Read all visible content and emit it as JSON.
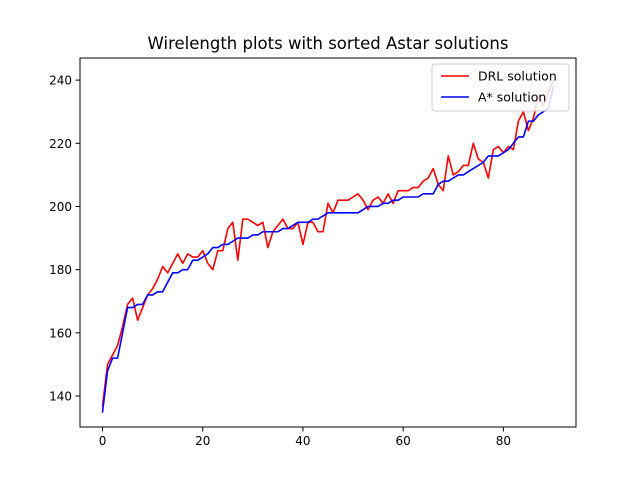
{
  "chart_data": {
    "type": "line",
    "title": "Wirelength plots with sorted Astar solutions",
    "xlabel": "",
    "ylabel": "",
    "xlim": [
      -4.5,
      94.5
    ],
    "ylim": [
      130.2,
      247.0
    ],
    "xticks": [
      0,
      20,
      40,
      60,
      80
    ],
    "yticks": [
      140,
      160,
      180,
      200,
      220,
      240
    ],
    "grid": false,
    "legend_position": "top-right",
    "x": [
      0,
      1,
      2,
      3,
      4,
      5,
      6,
      7,
      8,
      9,
      10,
      11,
      12,
      13,
      14,
      15,
      16,
      17,
      18,
      19,
      20,
      21,
      22,
      23,
      24,
      25,
      26,
      27,
      28,
      29,
      30,
      31,
      32,
      33,
      34,
      35,
      36,
      37,
      38,
      39,
      40,
      41,
      42,
      43,
      44,
      45,
      46,
      47,
      48,
      49,
      50,
      51,
      52,
      53,
      54,
      55,
      56,
      57,
      58,
      59,
      60,
      61,
      62,
      63,
      64,
      65,
      66,
      67,
      68,
      69,
      70,
      71,
      72,
      73,
      74,
      75,
      76,
      77,
      78,
      79,
      80,
      81,
      82,
      83,
      84,
      85,
      86,
      87,
      88,
      89,
      90
    ],
    "series": [
      {
        "name": "DRL solution",
        "color": "#ff0000",
        "values": [
          137,
          150,
          153,
          156,
          162,
          169,
          171,
          164,
          168,
          172,
          174,
          177,
          181,
          179,
          182,
          185,
          182,
          185,
          184,
          184,
          186,
          182,
          180,
          186,
          186,
          193,
          195,
          183,
          196,
          196,
          195,
          194,
          195,
          187,
          192,
          194,
          196,
          193,
          193,
          195,
          188,
          195,
          195,
          192,
          192,
          201,
          198,
          202,
          202,
          202,
          203,
          204,
          202,
          199,
          202,
          203,
          201,
          204,
          201,
          205,
          205,
          205,
          206,
          206,
          208,
          209,
          212,
          207,
          205,
          216,
          210,
          211,
          213,
          213,
          220,
          215,
          214,
          209,
          218,
          219,
          217,
          219,
          218,
          227,
          230,
          224,
          228,
          235,
          232,
          236,
          240
        ]
      },
      {
        "name": "A* solution",
        "color": "#0000ff",
        "values": [
          135,
          148,
          152,
          152,
          160,
          168,
          168,
          169,
          169,
          172,
          172,
          173,
          173,
          176,
          179,
          179,
          180,
          180,
          183,
          183,
          184,
          185,
          187,
          187,
          188,
          188,
          189,
          190,
          190,
          190,
          191,
          191,
          192,
          192,
          192,
          192,
          193,
          193,
          194,
          195,
          195,
          195,
          196,
          196,
          197,
          198,
          198,
          198,
          198,
          198,
          198,
          198,
          199,
          200,
          200,
          200,
          201,
          201,
          202,
          202,
          203,
          203,
          203,
          203,
          204,
          204,
          204,
          207,
          208,
          208,
          209,
          210,
          210,
          211,
          212,
          213,
          214,
          216,
          216,
          216,
          217,
          218,
          220,
          222,
          222,
          227,
          227,
          229,
          230,
          231,
          238
        ]
      }
    ]
  }
}
